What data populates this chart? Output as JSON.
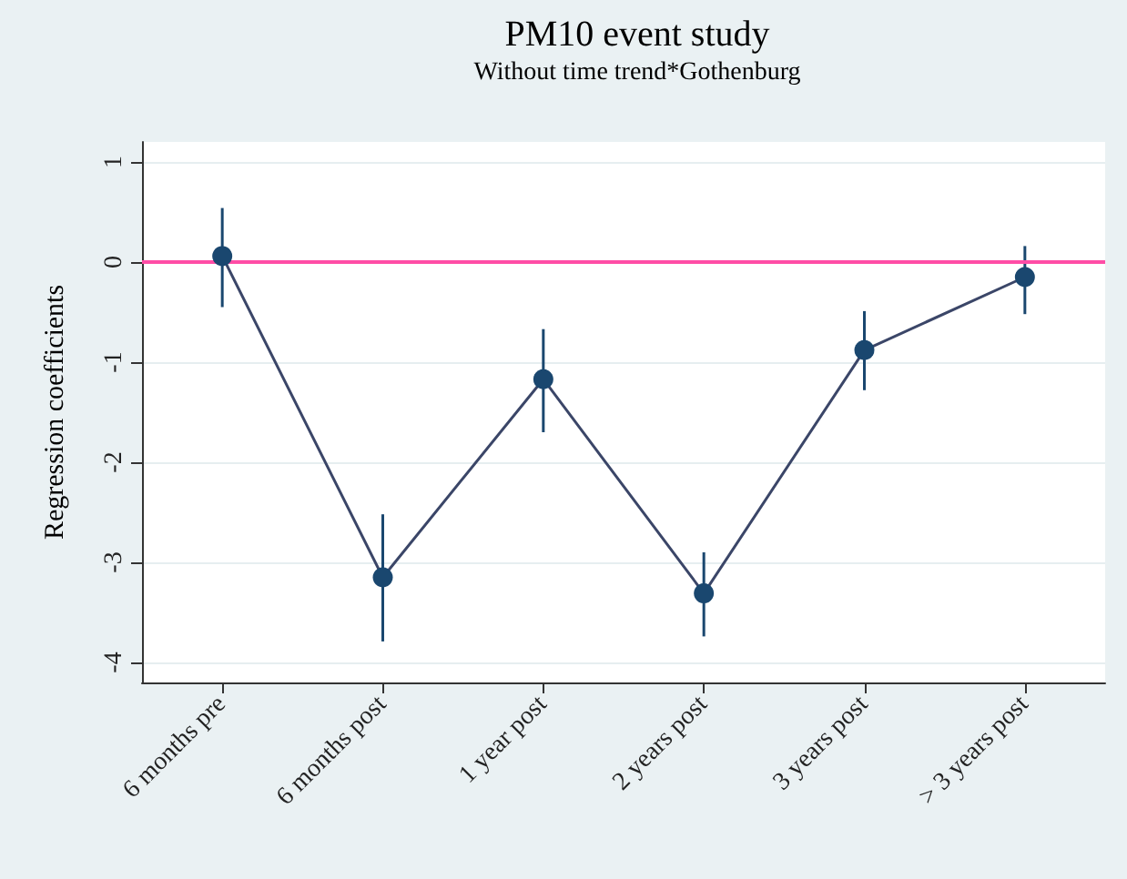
{
  "chart_data": {
    "type": "line",
    "title": "PM10 event study",
    "subtitle": "Without time trend*Gothenburg",
    "ylabel": "Regression coefficients",
    "categories": [
      "6 months pre",
      "6 months post",
      "1 year post",
      "2 years post",
      "3 years post",
      "> 3 years post"
    ],
    "series": [
      {
        "color": "#1a476f",
        "values": [
          0.06,
          -3.15,
          -1.17,
          -3.31,
          -0.88,
          -0.15
        ],
        "errors": [
          [
            -0.45,
            0.54
          ],
          [
            -3.79,
            -2.52
          ],
          [
            -1.7,
            -0.67
          ],
          [
            -3.74,
            -2.9
          ],
          [
            -1.28,
            -0.49
          ],
          [
            -0.52,
            0.16
          ]
        ]
      }
    ],
    "ylim": [
      -4.2,
      1.2
    ],
    "yticks": [
      -4,
      -3,
      -2,
      -1,
      0,
      1
    ],
    "grid": "y",
    "marker": "circle",
    "line_style": "solid",
    "ref_lines": [
      {
        "axis": "y",
        "value": 0,
        "color": "#ff4da6"
      }
    ]
  }
}
